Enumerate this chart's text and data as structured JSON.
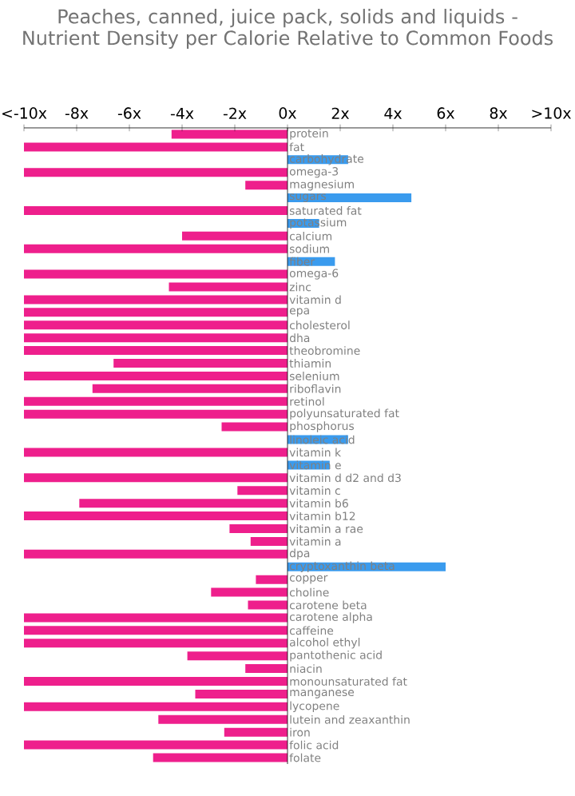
{
  "chart_data": {
    "type": "bar",
    "orientation": "horizontal",
    "title": "Peaches, canned, juice pack, solids and liquids - Nutrient Density per Calorie Relative to Common Foods",
    "categories": [
      "protein",
      "fat",
      "carbohydrate",
      "omega-3",
      "magnesium",
      "sugars",
      "saturated fat",
      "potassium",
      "calcium",
      "sodium",
      "fiber",
      "omega-6",
      "zinc",
      "vitamin d",
      "epa",
      "cholesterol",
      "dha",
      "theobromine",
      "thiamin",
      "selenium",
      "riboflavin",
      "retinol",
      "polyunsaturated fat",
      "phosphorus",
      "linoleic acid",
      "vitamin k",
      "vitamin e",
      "vitamin d d2 and d3",
      "vitamin c",
      "vitamin b6",
      "vitamin b12",
      "vitamin a rae",
      "vitamin a",
      "dpa",
      "cryptoxanthin beta",
      "copper",
      "choline",
      "carotene beta",
      "carotene alpha",
      "caffeine",
      "alcohol ethyl",
      "pantothenic acid",
      "niacin",
      "monounsaturated fat",
      "manganese",
      "lycopene",
      "lutein and zeaxanthin",
      "iron",
      "folic acid",
      "folate"
    ],
    "values": [
      -4.4,
      -10,
      2.3,
      -10,
      -1.6,
      4.7,
      -10,
      1.2,
      -4.0,
      -10,
      1.8,
      -10,
      -4.5,
      -10,
      -10,
      -10,
      -10,
      -10,
      -6.6,
      -10,
      -7.4,
      -10,
      -10,
      -2.5,
      2.3,
      -10,
      1.6,
      -10,
      -1.9,
      -7.9,
      -10,
      -2.2,
      -1.4,
      -10,
      6.0,
      -1.2,
      -2.9,
      -1.5,
      -10,
      -10,
      -10,
      -3.8,
      -1.6,
      -10,
      -3.5,
      -10,
      -4.9,
      -2.4,
      -10,
      -5.1
    ],
    "colors": [
      "#ee1f8c",
      "#ee1f8c",
      "#3a9bee",
      "#ee1f8c",
      "#ee1f8c",
      "#3a9bee",
      "#ee1f8c",
      "#3a9bee",
      "#ee1f8c",
      "#ee1f8c",
      "#3a9bee",
      "#ee1f8c",
      "#ee1f8c",
      "#ee1f8c",
      "#ee1f8c",
      "#ee1f8c",
      "#ee1f8c",
      "#ee1f8c",
      "#ee1f8c",
      "#ee1f8c",
      "#ee1f8c",
      "#ee1f8c",
      "#ee1f8c",
      "#ee1f8c",
      "#3a9bee",
      "#ee1f8c",
      "#3a9bee",
      "#ee1f8c",
      "#ee1f8c",
      "#ee1f8c",
      "#ee1f8c",
      "#ee1f8c",
      "#ee1f8c",
      "#ee1f8c",
      "#3a9bee",
      "#ee1f8c",
      "#ee1f8c",
      "#ee1f8c",
      "#ee1f8c",
      "#ee1f8c",
      "#ee1f8c",
      "#ee1f8c",
      "#ee1f8c",
      "#ee1f8c",
      "#ee1f8c",
      "#ee1f8c",
      "#ee1f8c",
      "#ee1f8c",
      "#ee1f8c",
      "#ee1f8c"
    ],
    "xlim": [
      -10,
      10
    ],
    "xticks": [
      {
        "value": -10,
        "label": "<-10x"
      },
      {
        "value": -8,
        "label": "-8x"
      },
      {
        "value": -6,
        "label": "-6x"
      },
      {
        "value": -4,
        "label": "-4x"
      },
      {
        "value": -2,
        "label": "-2x"
      },
      {
        "value": 0,
        "label": "0x"
      },
      {
        "value": 2,
        "label": "2x"
      },
      {
        "value": 4,
        "label": "4x"
      },
      {
        "value": 6,
        "label": "6x"
      },
      {
        "value": 8,
        "label": "8x"
      },
      {
        "value": 10,
        "label": ">10x"
      }
    ]
  }
}
